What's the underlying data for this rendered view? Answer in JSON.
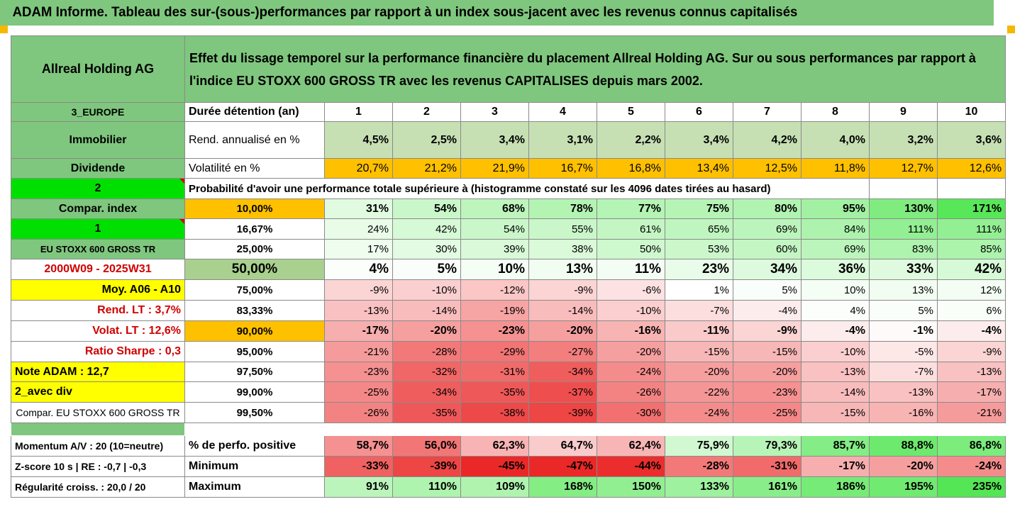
{
  "banner": "ADAM Informe. Tableau des sur-(sous-)performances par rapport à un index sous-jacent avec les revenus connus capitalisés",
  "company": "Allreal Holding AG",
  "description": "Effet du lissage temporel sur la performance financière du placement Allreal Holding AG. Sur ou sous performances par rapport à l'indice EU STOXX 600 GROSS TR avec les revenus CAPITALISES depuis mars 2002.",
  "region": "3_EUROPE",
  "sector": "Immobilier",
  "div_label": "Dividende",
  "hold_label": "Durée détention (an)",
  "years": [
    "1",
    "2",
    "3",
    "4",
    "5",
    "6",
    "7",
    "8",
    "9",
    "10"
  ],
  "rend_label": "Rend. annualisé en %",
  "rend": [
    "4,5%",
    "2,5%",
    "3,4%",
    "3,1%",
    "2,2%",
    "3,4%",
    "4,2%",
    "4,0%",
    "3,2%",
    "3,6%"
  ],
  "vol_label": "Volatilité en %",
  "vol": [
    "20,7%",
    "21,2%",
    "21,9%",
    "16,7%",
    "16,8%",
    "13,4%",
    "12,5%",
    "11,8%",
    "12,7%",
    "12,6%"
  ],
  "prob_num": "2",
  "prob_label": "Probabilité d'avoir une performance totale supérieure à (histogramme constaté sur les 4096 dates tirées au hasard)",
  "left_labels": [
    "Compar. index",
    "1",
    "EU STOXX 600 GROSS TR",
    "2000W09 - 2025W31",
    "Moy. A06 - A10",
    "Rend. LT :    3,7%",
    "Volat. LT :   12,6%",
    "Ratio Sharpe :    0,3",
    "Note ADAM : 12,7",
    "2_avec div",
    "Compar. EU STOXX 600 GROSS TR"
  ],
  "percentiles": [
    "10,00%",
    "16,67%",
    "25,00%",
    "50,00%",
    "75,00%",
    "83,33%",
    "90,00%",
    "95,00%",
    "97,50%",
    "99,00%",
    "99,50%"
  ],
  "grid": [
    [
      "31%",
      "54%",
      "68%",
      "78%",
      "77%",
      "75%",
      "80%",
      "95%",
      "130%",
      "171%"
    ],
    [
      "24%",
      "42%",
      "54%",
      "55%",
      "61%",
      "65%",
      "69%",
      "84%",
      "111%",
      "111%"
    ],
    [
      "17%",
      "30%",
      "39%",
      "38%",
      "50%",
      "53%",
      "60%",
      "69%",
      "83%",
      "85%"
    ],
    [
      "4%",
      "5%",
      "10%",
      "13%",
      "11%",
      "23%",
      "34%",
      "36%",
      "33%",
      "42%"
    ],
    [
      "-9%",
      "-10%",
      "-12%",
      "-9%",
      "-6%",
      "1%",
      "5%",
      "10%",
      "13%",
      "12%"
    ],
    [
      "-13%",
      "-14%",
      "-19%",
      "-14%",
      "-10%",
      "-7%",
      "-4%",
      "4%",
      "5%",
      "6%"
    ],
    [
      "-17%",
      "-20%",
      "-23%",
      "-20%",
      "-16%",
      "-11%",
      "-9%",
      "-4%",
      "-1%",
      "-4%"
    ],
    [
      "-21%",
      "-28%",
      "-29%",
      "-27%",
      "-20%",
      "-15%",
      "-15%",
      "-10%",
      "-5%",
      "-9%"
    ],
    [
      "-23%",
      "-32%",
      "-31%",
      "-34%",
      "-24%",
      "-20%",
      "-20%",
      "-13%",
      "-7%",
      "-13%"
    ],
    [
      "-25%",
      "-34%",
      "-35%",
      "-37%",
      "-26%",
      "-22%",
      "-23%",
      "-14%",
      "-13%",
      "-17%"
    ],
    [
      "-26%",
      "-35%",
      "-38%",
      "-39%",
      "-30%",
      "-24%",
      "-25%",
      "-15%",
      "-16%",
      "-21%"
    ]
  ],
  "stats": [
    {
      "left": "Momentum A/V : 20 (10=neutre)",
      "label": "% de perfo. positive",
      "values": [
        "58,7%",
        "56,0%",
        "62,3%",
        "64,7%",
        "62,4%",
        "75,9%",
        "79,3%",
        "85,7%",
        "88,8%",
        "86,8%"
      ]
    },
    {
      "left": "Z-score 10 s  | RE : -0,7  | -0,3",
      "label": "Minimum",
      "values": [
        "-33%",
        "-39%",
        "-45%",
        "-47%",
        "-44%",
        "-28%",
        "-31%",
        "-17%",
        "-20%",
        "-24%"
      ]
    },
    {
      "left": "Régularité croiss. : 20,0 / 20",
      "label": "Maximum",
      "values": [
        "91%",
        "110%",
        "109%",
        "168%",
        "150%",
        "133%",
        "161%",
        "186%",
        "195%",
        "235%"
      ]
    }
  ],
  "colors": {
    "header_green": "#7fc77e",
    "bright_green": "#00e000",
    "yellow": "#ffff00",
    "orange": "#ffc000",
    "title_red": "#d00000"
  }
}
